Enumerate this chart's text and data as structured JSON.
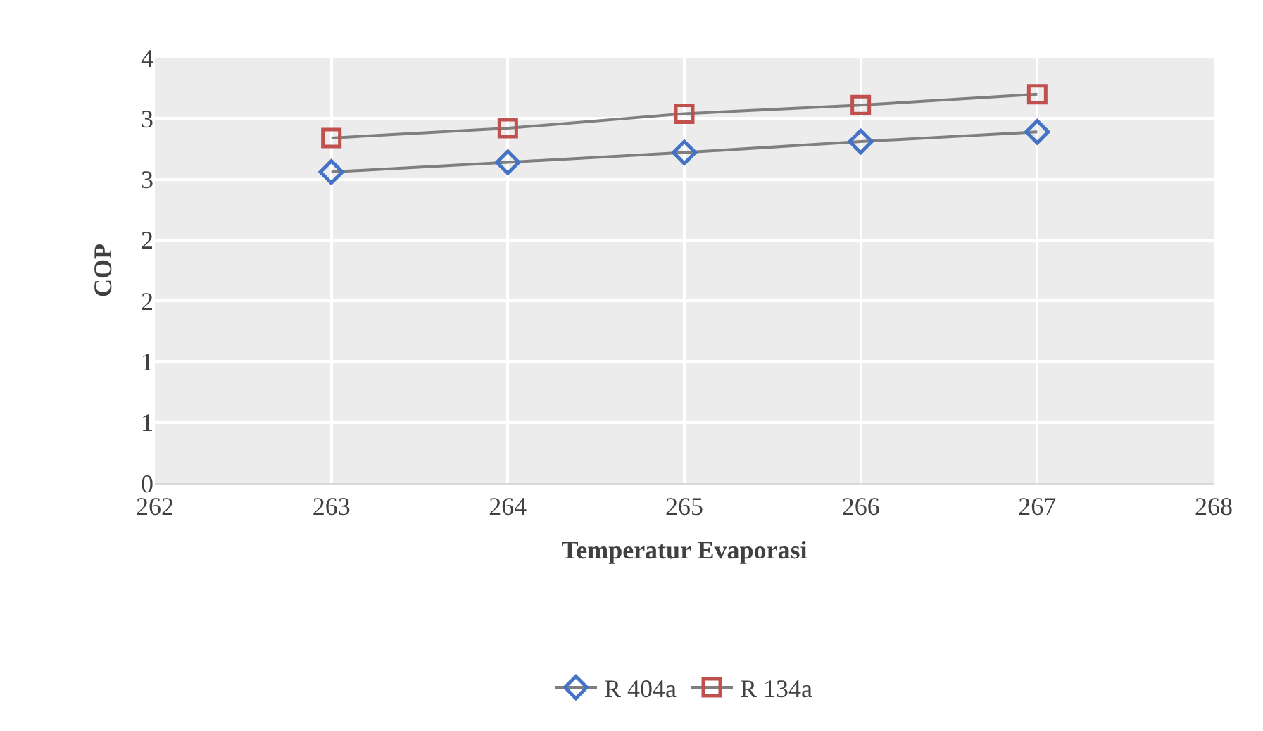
{
  "chart_data": {
    "type": "line",
    "xlabel": "Temperatur Evaporasi",
    "ylabel": "COP",
    "x": [
      263,
      264,
      265,
      266,
      267
    ],
    "series": [
      {
        "name": "R 404a",
        "color": "#4472c4",
        "marker": "diamond",
        "values": [
          2.56,
          2.64,
          2.72,
          2.81,
          2.89
        ]
      },
      {
        "name": "R 134a",
        "color": "#c0504d",
        "marker": "square",
        "values": [
          2.84,
          2.92,
          3.04,
          3.11,
          3.2
        ]
      }
    ],
    "xlim": [
      262,
      268
    ],
    "xticks": [
      262,
      263,
      264,
      265,
      266,
      267,
      268
    ],
    "ylim": [
      0,
      3.5
    ],
    "yticks": [
      0,
      {
        "value": 0.5,
        "label": "1"
      },
      1,
      {
        "value": 1.5,
        "label": "2"
      },
      2,
      {
        "value": 2.5,
        "label": "3"
      },
      3,
      {
        "value": 3.5,
        "label": "4"
      }
    ],
    "grid": true,
    "legend": "bottom",
    "line_style": "solid"
  }
}
